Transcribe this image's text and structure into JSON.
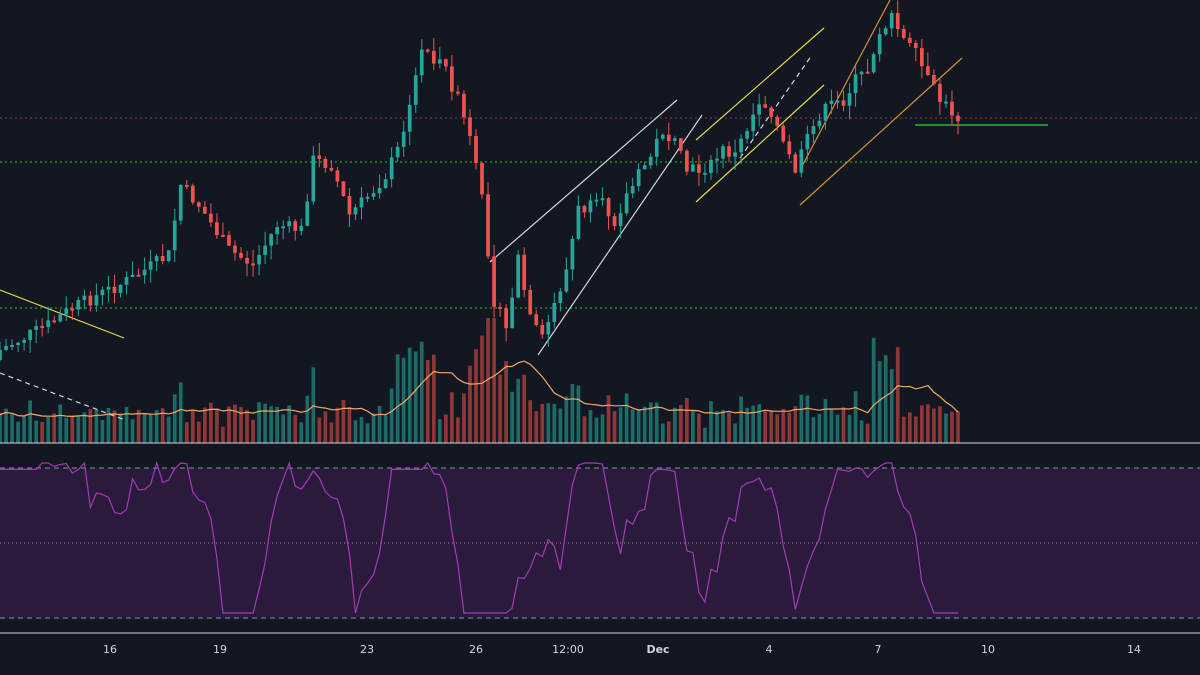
{
  "theme": {
    "background": "#131722",
    "up_color": "#26a69a",
    "down_color": "#ef5350",
    "volume_up": "#1f7a72",
    "volume_down": "#a33d3b",
    "volume_ma": "#f0a868",
    "rsi_line": "#a33ab5",
    "rsi_band": "#2a1b3d",
    "support_level": "#22dd22",
    "resistance_level": "#b33a5a",
    "separator": "#d1d4dc"
  },
  "x_axis": {
    "ticks": [
      "16",
      "19",
      "23",
      "26",
      "12:00",
      "Dec",
      "4",
      "7",
      "10",
      "14"
    ],
    "bold_ticks": [
      "Dec"
    ]
  },
  "chart_data": {
    "type": "candlestick",
    "panes": [
      "price",
      "volume",
      "rsi"
    ],
    "horizontal_levels": [
      {
        "name": "resistance",
        "style": "dotted",
        "color": "#b33a5a"
      },
      {
        "name": "support-1",
        "style": "dotted",
        "color": "#22dd22"
      },
      {
        "name": "support-2",
        "style": "dotted",
        "color": "#22dd22"
      }
    ],
    "rsi": {
      "bands": [
        30,
        50,
        70
      ]
    },
    "drawings": [
      {
        "name": "trendline-yellow-left",
        "color": "#e6d84c"
      },
      {
        "name": "trendline-dashed-left",
        "color": "#d1d4dc"
      },
      {
        "name": "channel-white",
        "color": "#d1d4dc"
      },
      {
        "name": "channel-yellow",
        "color": "#e6d84c"
      },
      {
        "name": "channel-orange",
        "color": "#d4922e"
      },
      {
        "name": "horizontal-green",
        "color": "#22dd22"
      }
    ]
  }
}
